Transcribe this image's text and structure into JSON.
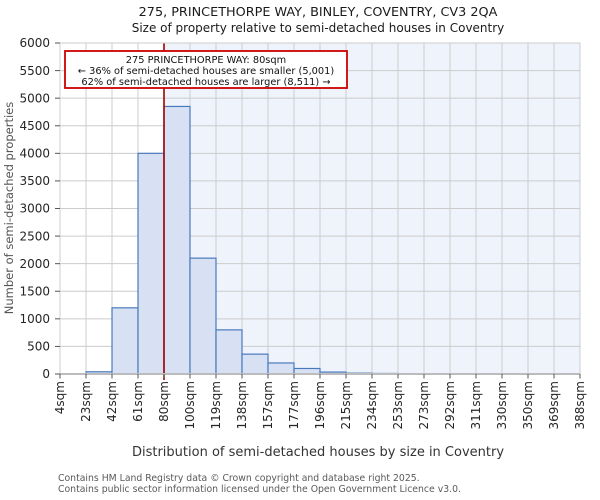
{
  "chart_data": {
    "type": "bar",
    "title": "275, PRINCETHORPE WAY, BINLEY, COVENTRY, CV3 2QA",
    "subtitle": "Size of property relative to semi-detached houses in Coventry",
    "xlabel": "Distribution of semi-detached houses by size in Coventry",
    "ylabel": "Number of semi-detached properties",
    "x_tick_labels": [
      "4sqm",
      "23sqm",
      "42sqm",
      "61sqm",
      "80sqm",
      "100sqm",
      "119sqm",
      "138sqm",
      "157sqm",
      "177sqm",
      "196sqm",
      "215sqm",
      "234sqm",
      "253sqm",
      "273sqm",
      "292sqm",
      "311sqm",
      "330sqm",
      "350sqm",
      "369sqm",
      "388sqm"
    ],
    "bin_counts": [
      0,
      40,
      1200,
      4000,
      4850,
      2100,
      800,
      360,
      200,
      100,
      35,
      15,
      10,
      0,
      0,
      0,
      0,
      0,
      0,
      0
    ],
    "ylim": [
      0,
      6000
    ],
    "y_tick_step": 500,
    "grid": "on",
    "legend": "none",
    "marker": {
      "label": "80sqm",
      "tick_index": 4
    },
    "annotation": {
      "line1": "275 PRINCETHORPE WAY: 80sqm",
      "line2": "← 36% of semi-detached houses are smaller (5,001)",
      "line3": "62% of semi-detached houses are larger (8,511) →"
    },
    "colors": {
      "bar_fill": "#d7e1f3",
      "bar_border": "#4a7abc",
      "marker_line": "#a00000",
      "annotation_border": "#cc0000",
      "shade_right": "#eff3fb",
      "grid": "#cccccc",
      "axis_line": "#bcbcbc",
      "tick": "#555555"
    }
  },
  "footer": {
    "line1": "Contains HM Land Registry data © Crown copyright and database right 2025.",
    "line2": "Contains public sector information licensed under the Open Government Licence v3.0."
  }
}
